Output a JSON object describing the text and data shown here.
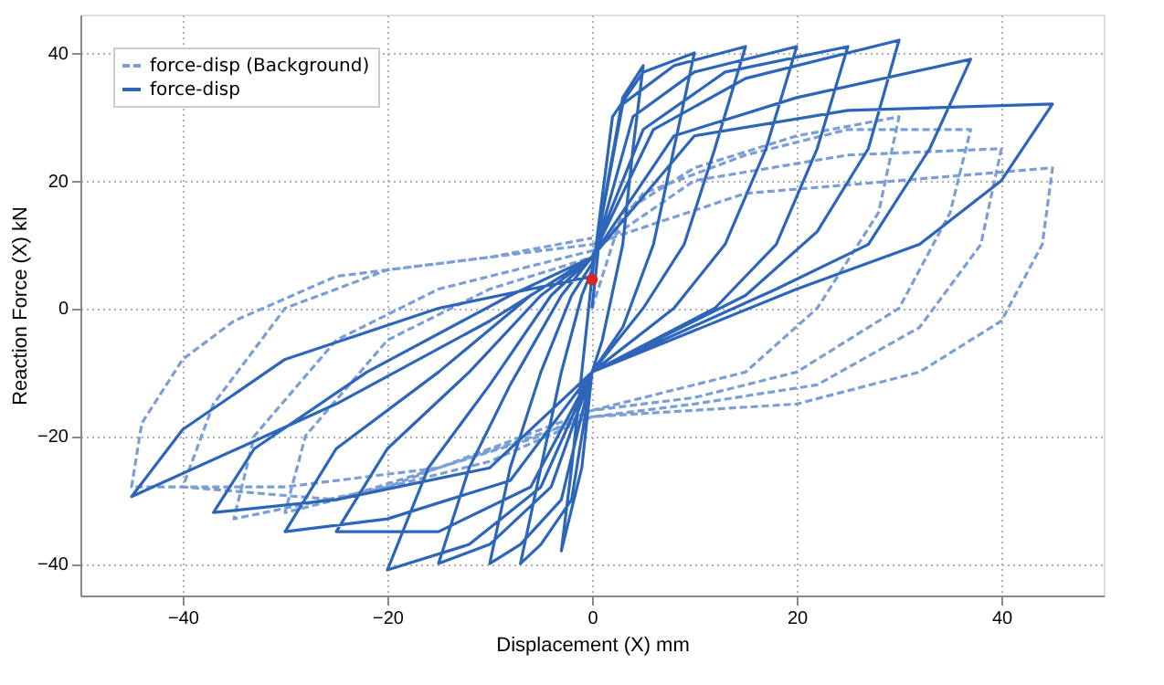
{
  "chart_data": {
    "type": "line",
    "xlabel": "Displacement (X) mm",
    "ylabel": "Reaction Force (X) kN",
    "xlim": [
      -50,
      50
    ],
    "ylim": [
      -45,
      46
    ],
    "xticks": [
      -40,
      -20,
      0,
      20,
      40
    ],
    "yticks": [
      -40,
      -20,
      0,
      20,
      40
    ],
    "grid": true,
    "legend": "top left",
    "series": [
      {
        "name": "force-disp (Background)",
        "color": "#7a9fd6",
        "line_style": "dashed",
        "x": [
          0,
          3,
          10,
          20,
          30,
          28,
          22,
          15,
          5,
          0,
          -5,
          -15,
          -25,
          -30,
          -28,
          -20,
          -10,
          0,
          5,
          15,
          25,
          37,
          35,
          30,
          20,
          10,
          0,
          -10,
          -20,
          -35,
          -33,
          -25,
          -15,
          0,
          10,
          25,
          40,
          38,
          32,
          22,
          10,
          0,
          -10,
          -25,
          -40,
          -37,
          -30,
          -20,
          0,
          15,
          30,
          45,
          44,
          40,
          32,
          20,
          0,
          -15,
          -30,
          -45,
          -44,
          -40,
          -35,
          -25,
          -10,
          0
        ],
        "values": [
          0,
          15,
          22,
          27,
          30,
          15,
          0,
          -10,
          -14,
          -16,
          -20,
          -25,
          -30,
          -32,
          -20,
          -5,
          3,
          8,
          18,
          24,
          28,
          28,
          15,
          0,
          -10,
          -14,
          -16,
          -22,
          -28,
          -33,
          -20,
          -5,
          3,
          9,
          20,
          24,
          25,
          10,
          -3,
          -12,
          -15,
          -17,
          -24,
          -30,
          -28,
          -15,
          0,
          6,
          10,
          18,
          20,
          22,
          10,
          -2,
          -10,
          -15,
          -17,
          -25,
          -28,
          -28,
          -18,
          -8,
          -2,
          5,
          8,
          11
        ]
      },
      {
        "name": "force-disp",
        "color": "#2d66b8",
        "line_style": "solid",
        "x": [
          0,
          1,
          3,
          5,
          4,
          3,
          1,
          0,
          -1,
          -3,
          -2,
          -1,
          0,
          2,
          5,
          10,
          8,
          6,
          3,
          0,
          -2,
          -5,
          -7,
          -5,
          -3,
          -1,
          0,
          3,
          8,
          15,
          12,
          9,
          5,
          0,
          -3,
          -7,
          -10,
          -8,
          -5,
          -2,
          0,
          4,
          10,
          20,
          17,
          13,
          8,
          0,
          -4,
          -10,
          -15,
          -12,
          -8,
          -3,
          0,
          5,
          13,
          25,
          22,
          18,
          12,
          0,
          -5,
          -12,
          -20,
          -16,
          -10,
          -4,
          0,
          6,
          15,
          30,
          27,
          22,
          15,
          0,
          -6,
          -15,
          -25,
          -20,
          -12,
          -5,
          0,
          8,
          20,
          37,
          33,
          27,
          18,
          0,
          -8,
          -20,
          -30,
          -25,
          -15,
          -6,
          0,
          10,
          25,
          45,
          40,
          32,
          20,
          0,
          -10,
          -25,
          -37,
          -33,
          -22,
          -8,
          0,
          -10,
          -25,
          -45,
          -40,
          -30,
          -15,
          0
        ],
        "values": [
          0,
          15,
          33,
          38,
          25,
          10,
          -5,
          -10,
          -25,
          -38,
          -25,
          -10,
          5,
          30,
          37,
          40,
          25,
          10,
          -3,
          -10,
          -30,
          -37,
          -40,
          -25,
          -10,
          2,
          6,
          32,
          38,
          41,
          25,
          10,
          0,
          -10,
          -30,
          -37,
          -40,
          -25,
          -10,
          2,
          7,
          30,
          37,
          41,
          25,
          10,
          0,
          -10,
          -28,
          -37,
          -40,
          -25,
          -12,
          2,
          8,
          28,
          37,
          41,
          25,
          10,
          0,
          -10,
          -28,
          -37,
          -41,
          -25,
          -12,
          2,
          8,
          28,
          36,
          42,
          25,
          12,
          2,
          -10,
          -28,
          -35,
          -35,
          -22,
          -10,
          2,
          8,
          27,
          33,
          39,
          25,
          10,
          3,
          -10,
          -27,
          -33,
          -35,
          -22,
          -10,
          2,
          8,
          27,
          31,
          32,
          20,
          10,
          3,
          -10,
          -25,
          -30,
          -32,
          -22,
          -10,
          2,
          8,
          -2,
          -15,
          -29.5,
          -19,
          -8,
          0,
          5
        ]
      },
      {
        "type": "scatter",
        "color": "#d62728",
        "marker": "circle",
        "x": [
          0
        ],
        "values": [
          4.5
        ]
      }
    ]
  }
}
